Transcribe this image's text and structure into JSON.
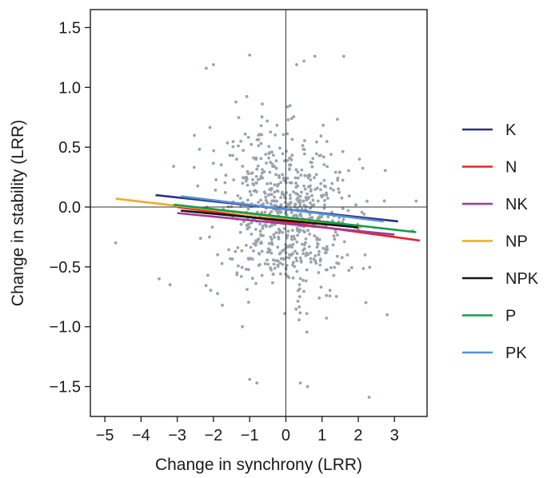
{
  "chart_data": {
    "type": "scatter",
    "title": "",
    "xlabel": "Change in synchrony (LRR)",
    "ylabel": "Change in stability (LRR)",
    "xlim": [
      -5.4,
      3.9
    ],
    "ylim": [
      -1.75,
      1.65
    ],
    "xticks": [
      -5,
      -4,
      -3,
      -2,
      -1,
      0,
      1,
      2,
      3
    ],
    "yticks": [
      -1.5,
      -1.0,
      -0.5,
      0.0,
      0.5,
      1.0,
      1.5
    ],
    "xtick_labels": [
      "−5",
      "−4",
      "−3",
      "−2",
      "−1",
      "0",
      "1",
      "2",
      "3"
    ],
    "ytick_labels": [
      "−1.5",
      "−1.0",
      "−0.5",
      "0.0",
      "0.5",
      "1.0",
      "1.5"
    ],
    "reference_lines": {
      "x": 0,
      "y": 0
    },
    "grid": false,
    "legend_position": "right",
    "point_color": "#9aa3ad",
    "point_count_approx": 700,
    "outlier_points": [
      [
        -1.0,
        1.27
      ],
      [
        1.6,
        1.26
      ],
      [
        0.8,
        1.26
      ],
      [
        0.5,
        1.22
      ],
      [
        0.3,
        1.19
      ],
      [
        -2.0,
        1.19
      ],
      [
        -2.2,
        1.16
      ],
      [
        -3.5,
        -0.6
      ],
      [
        -3.2,
        -0.65
      ],
      [
        -4.7,
        -0.3
      ],
      [
        2.3,
        -1.59
      ],
      [
        0.6,
        -1.5
      ],
      [
        0.4,
        -1.47
      ],
      [
        -0.8,
        -1.47
      ],
      [
        -1.0,
        -1.44
      ],
      [
        2.8,
        -0.9
      ],
      [
        3.5,
        -0.2
      ],
      [
        3.6,
        0.05
      ],
      [
        -3.1,
        0.34
      ],
      [
        -1.2,
        -1.0
      ]
    ],
    "series": [
      {
        "name": "K",
        "color": "#2d2f86",
        "line": {
          "x": [
            -3.6,
            3.1
          ],
          "y": [
            0.1,
            -0.12
          ]
        }
      },
      {
        "name": "N",
        "color": "#e2262b",
        "line": {
          "x": [
            -3.0,
            3.7
          ],
          "y": [
            0.0,
            -0.28
          ]
        }
      },
      {
        "name": "NK",
        "color": "#a23a9a",
        "line": {
          "x": [
            -3.0,
            3.0
          ],
          "y": [
            -0.05,
            -0.23
          ]
        }
      },
      {
        "name": "NP",
        "color": "#f3ab22",
        "line": {
          "x": [
            -4.7,
            2.1
          ],
          "y": [
            0.07,
            -0.17
          ]
        }
      },
      {
        "name": "NPK",
        "color": "#141414",
        "line": {
          "x": [
            -2.9,
            2.0
          ],
          "y": [
            -0.03,
            -0.17
          ]
        }
      },
      {
        "name": "P",
        "color": "#0e9f4a",
        "line": {
          "x": [
            -3.1,
            3.6
          ],
          "y": [
            0.02,
            -0.21
          ]
        }
      },
      {
        "name": "PK",
        "color": "#5391d4",
        "line": {
          "x": [
            -2.9,
            2.7
          ],
          "y": [
            0.09,
            -0.12
          ]
        }
      }
    ]
  }
}
